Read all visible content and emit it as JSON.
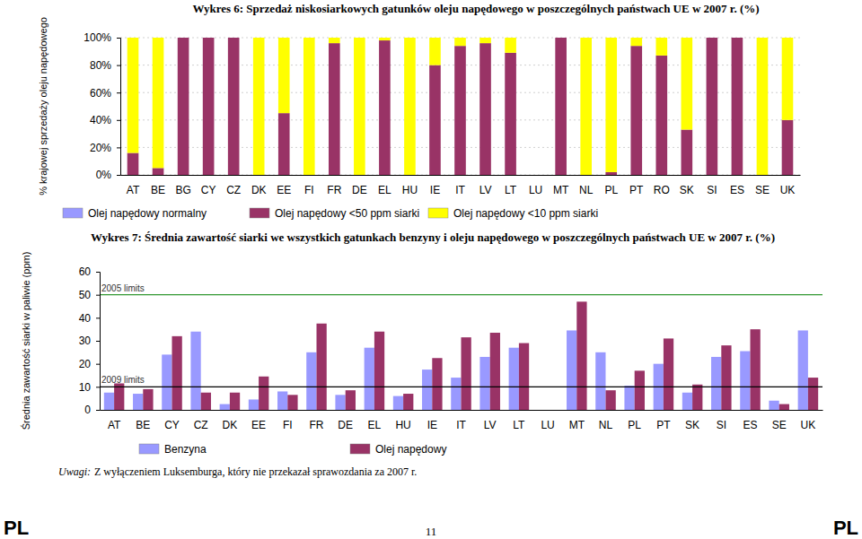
{
  "chart_data": [
    {
      "type": "bar",
      "title": "Wykres 6: Sprzedaż niskosiarkowych gatunków oleju napędowego w poszczególnych państwach UE w 2007 r. (%)",
      "y_label": "% krajowej sprzedaży oleju napędowego",
      "categories": [
        "AT",
        "BE",
        "BG",
        "CY",
        "CZ",
        "DK",
        "EE",
        "FI",
        "FR",
        "DE",
        "EL",
        "HU",
        "IE",
        "IT",
        "LV",
        "LT",
        "LU",
        "MT",
        "NL",
        "PL",
        "PT",
        "RO",
        "SK",
        "SI",
        "ES",
        "SE",
        "UK"
      ],
      "series": [
        {
          "name": "Olej napędowy normalny",
          "color": "#9999ff",
          "values": [
            0,
            0,
            0,
            0,
            0,
            0,
            0,
            0,
            0,
            0,
            0,
            0,
            0,
            0,
            0,
            0,
            null,
            0,
            0,
            0,
            0,
            0,
            0,
            0,
            0,
            0,
            0
          ]
        },
        {
          "name": "Olej napędowy <50 ppm siarki",
          "color": "#993366",
          "values": [
            16,
            5,
            100,
            100,
            100,
            0,
            45,
            0,
            96,
            0,
            98,
            0,
            80,
            94,
            96,
            89,
            null,
            100,
            0,
            2,
            94,
            87,
            33,
            100,
            100,
            0,
            40
          ]
        },
        {
          "name": "Olej napędowy <10 ppm siarki",
          "color": "#ffff00",
          "values": [
            84,
            95,
            0,
            0,
            0,
            100,
            55,
            100,
            4,
            100,
            2,
            100,
            20,
            6,
            4,
            11,
            null,
            0,
            100,
            98,
            6,
            13,
            67,
            0,
            0,
            100,
            60
          ]
        }
      ],
      "stacked": true,
      "ylim": [
        0,
        100
      ],
      "yticks": [
        {
          "value": 0,
          "label": "0%"
        },
        {
          "value": 20,
          "label": "20%"
        },
        {
          "value": 40,
          "label": "40%"
        },
        {
          "value": 60,
          "label": "60%"
        },
        {
          "value": 80,
          "label": "80%"
        },
        {
          "value": 100,
          "label": "100%"
        }
      ],
      "grid": true,
      "legend": "bottom"
    },
    {
      "type": "bar",
      "title": "Wykres 7: Średnia zawartość siarki we wszystkich gatunkach benzyny i oleju napędowego w poszczególnych państwach UE w 2007 r. (%)",
      "y_label": "Średnia zawartość siarki w paliwie (ppm)",
      "categories": [
        "AT",
        "BE",
        "CY",
        "CZ",
        "DK",
        "EE",
        "FI",
        "FR",
        "DE",
        "EL",
        "HU",
        "IE",
        "IT",
        "LV",
        "LT",
        "LU",
        "MT",
        "NL",
        "PL",
        "PT",
        "SK",
        "SI",
        "ES",
        "SE",
        "UK"
      ],
      "series": [
        {
          "name": "Benzyna",
          "color": "#9999ff",
          "values": [
            7.5,
            7,
            24,
            34,
            2.5,
            4.5,
            8,
            25,
            6.5,
            27,
            6,
            17.5,
            14,
            23,
            27,
            null,
            34.5,
            25,
            10.5,
            20,
            7.5,
            23,
            25.5,
            4,
            34.5
          ]
        },
        {
          "name": "Olej napędowy",
          "color": "#993366",
          "values": [
            11.5,
            9,
            32,
            7.5,
            7.5,
            14.5,
            6.5,
            37.5,
            8.5,
            34,
            7,
            22.5,
            31.5,
            33.5,
            29,
            null,
            47,
            8.5,
            17,
            31,
            11,
            28,
            35,
            2.5,
            14
          ]
        }
      ],
      "reference_lines": [
        {
          "value": 50,
          "label": "2005 limits",
          "color": "#339933"
        },
        {
          "value": 10,
          "label": "2009 limits",
          "color": "#000000"
        }
      ],
      "ylim": [
        0,
        60
      ],
      "yticks": [
        0,
        10,
        20,
        30,
        40,
        50,
        60
      ],
      "grid": false,
      "legend": "bottom"
    }
  ],
  "note": {
    "label": "Uwagi:",
    "text": "Z wyłączeniem Luksemburga, który nie przekazał sprawozdania za 2007 r."
  },
  "footer": {
    "left": "PL",
    "page": "11",
    "right": "PL"
  }
}
